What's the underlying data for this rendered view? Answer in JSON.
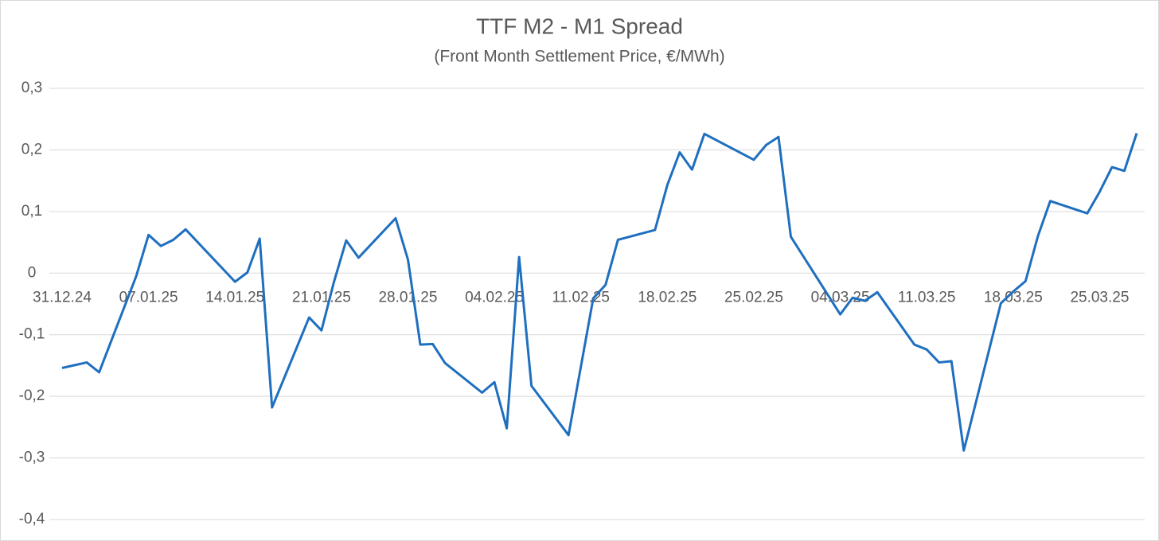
{
  "chart_data": {
    "type": "line",
    "title": "TTF M2 - M1 Spread",
    "subtitle": "(Front Month Settlement Price, €/MWh)",
    "x": [
      "31.12.24",
      "02.01.25",
      "03.01.25",
      "06.01.25",
      "07.01.25",
      "08.01.25",
      "09.01.25",
      "10.01.25",
      "14.01.25",
      "15.01.25",
      "16.01.25",
      "17.01.25",
      "20.01.25",
      "21.01.25",
      "22.01.25",
      "23.01.25",
      "24.01.25",
      "27.01.25",
      "28.01.25",
      "29.01.25",
      "30.01.25",
      "31.01.25",
      "03.02.25",
      "04.02.25",
      "05.02.25",
      "06.02.25",
      "07.02.25",
      "10.02.25",
      "12.02.25",
      "13.02.25",
      "14.02.25",
      "17.02.25",
      "18.02.25",
      "19.02.25",
      "20.02.25",
      "21.02.25",
      "25.02.25",
      "26.02.25",
      "27.02.25",
      "28.02.25",
      "04.03.25",
      "05.03.25",
      "06.03.25",
      "07.03.25",
      "10.03.25",
      "11.03.25",
      "12.03.25",
      "13.03.25",
      "14.03.25",
      "17.03.25",
      "18.03.25",
      "19.03.25",
      "20.03.25",
      "21.03.25",
      "24.03.25",
      "25.03.25",
      "26.03.25",
      "27.03.25",
      "28.03.25"
    ],
    "series": [
      {
        "name": "M2 - M1 Spread",
        "color": "#1f6fbf",
        "values": [
          -0.154,
          -0.145,
          -0.161,
          -0.005,
          0.062,
          0.044,
          0.054,
          0.071,
          -0.014,
          0.001,
          0.056,
          -0.218,
          -0.072,
          -0.093,
          -0.015,
          0.053,
          0.025,
          0.089,
          0.022,
          -0.116,
          -0.115,
          -0.146,
          -0.194,
          -0.177,
          -0.252,
          0.026,
          -0.183,
          -0.263,
          -0.041,
          -0.019,
          0.054,
          0.07,
          0.143,
          0.196,
          0.168,
          0.226,
          0.184,
          0.208,
          0.221,
          0.059,
          -0.067,
          -0.04,
          -0.045,
          -0.031,
          -0.116,
          -0.124,
          -0.145,
          -0.143,
          -0.288,
          -0.049,
          -0.03,
          -0.013,
          0.06,
          0.117,
          0.097,
          0.132,
          0.172,
          0.166,
          0.227
        ]
      }
    ],
    "xlim": [
      "31.12.24",
      "28.03.25"
    ],
    "xticks": [
      "31.12.24",
      "07.01.25",
      "14.01.25",
      "21.01.25",
      "28.01.25",
      "04.02.25",
      "11.02.25",
      "18.02.25",
      "25.02.25",
      "04.03.25",
      "11.03.25",
      "18.03.25",
      "25.03.25"
    ],
    "ylim": [
      -0.4,
      0.3
    ],
    "yticks": [
      {
        "value": -0.4,
        "label": "-0,4"
      },
      {
        "value": -0.3,
        "label": "-0,3"
      },
      {
        "value": -0.2,
        "label": "-0,2"
      },
      {
        "value": -0.1,
        "label": "-0,1"
      },
      0,
      {
        "value": 0.1,
        "label": "0,1"
      },
      {
        "value": 0.2,
        "label": "0,2"
      },
      {
        "value": 0.3,
        "label": "0,3"
      }
    ],
    "grid": true
  }
}
